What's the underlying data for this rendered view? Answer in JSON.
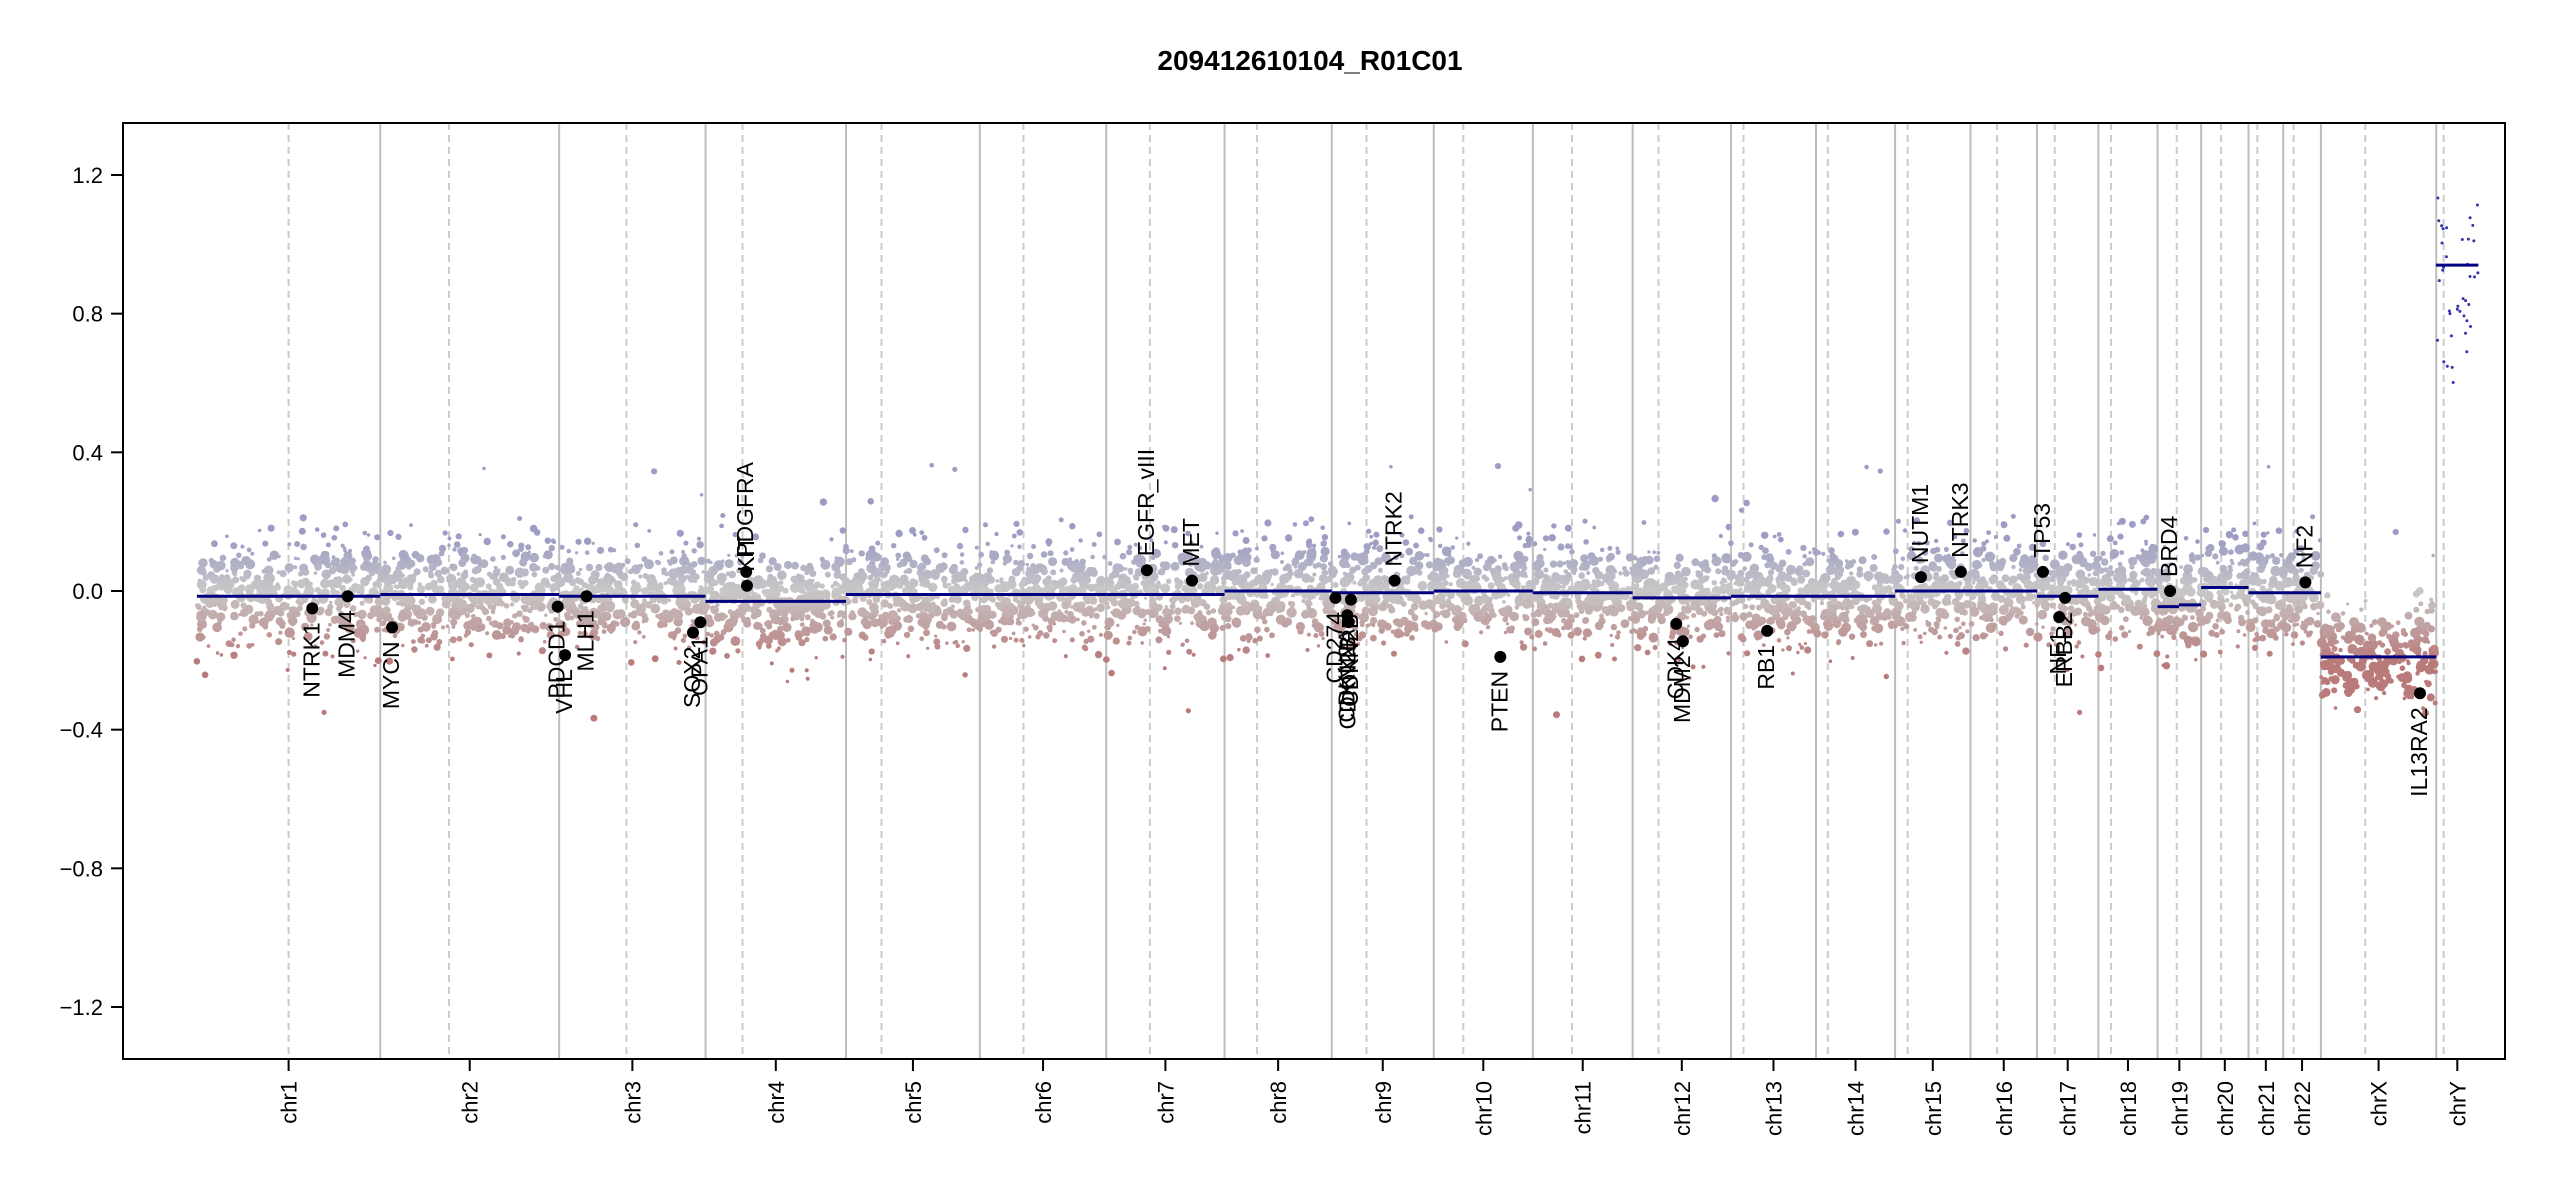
{
  "chart_data": {
    "type": "scatter",
    "title": "209412610104_R01C01",
    "xlabel": "",
    "ylabel": "",
    "ylim": [
      -1.35,
      1.35
    ],
    "yticks": [
      1.2,
      0.8,
      0.4,
      0.0,
      -0.4,
      -0.8,
      -1.2
    ],
    "ytick_labels": [
      "1.2",
      "0.8",
      "0.4",
      "0.0",
      "−0.4",
      "−0.8",
      "−1.2"
    ],
    "grid": false,
    "colors": {
      "gain": "#9c9cc4",
      "neutral": "#c8c8c8",
      "loss": "#b97a7a",
      "segment": "#000080",
      "separator_solid": "#bdbdbd",
      "separator_dashed": "#cccccc",
      "gene_point": "#000000"
    },
    "chromosomes": [
      {
        "name": "chr1",
        "start": 0,
        "end": 248,
        "centromere": 124,
        "segments": [
          [
            0,
            248,
            -0.015
          ]
        ]
      },
      {
        "name": "chr2",
        "start": 248,
        "end": 490,
        "centromere": 341,
        "segments": [
          [
            248,
            490,
            -0.01
          ]
        ]
      },
      {
        "name": "chr3",
        "start": 490,
        "end": 688,
        "centromere": 581,
        "segments": [
          [
            490,
            688,
            -0.015
          ]
        ]
      },
      {
        "name": "chr4",
        "start": 688,
        "end": 878,
        "centromere": 738,
        "segments": [
          [
            688,
            878,
            -0.03
          ]
        ]
      },
      {
        "name": "chr5",
        "start": 878,
        "end": 1059,
        "centromere": 926,
        "segments": [
          [
            878,
            1059,
            -0.01
          ]
        ]
      },
      {
        "name": "chr6",
        "start": 1059,
        "end": 1230,
        "centromere": 1118,
        "segments": [
          [
            1059,
            1230,
            -0.01
          ]
        ]
      },
      {
        "name": "chr7",
        "start": 1230,
        "end": 1390,
        "centromere": 1289,
        "segments": [
          [
            1230,
            1390,
            -0.01
          ]
        ]
      },
      {
        "name": "chr8",
        "start": 1390,
        "end": 1535,
        "centromere": 1434,
        "segments": [
          [
            1390,
            1535,
            0.0
          ]
        ]
      },
      {
        "name": "chr9",
        "start": 1535,
        "end": 1673,
        "centromere": 1582,
        "segments": [
          [
            1535,
            1673,
            -0.005
          ]
        ]
      },
      {
        "name": "chr10",
        "start": 1673,
        "end": 1807,
        "centromere": 1713,
        "segments": [
          [
            1673,
            1807,
            0.0
          ]
        ]
      },
      {
        "name": "chr11",
        "start": 1807,
        "end": 1942,
        "centromere": 1860,
        "segments": [
          [
            1807,
            1942,
            -0.005
          ]
        ]
      },
      {
        "name": "chr12",
        "start": 1942,
        "end": 2075,
        "centromere": 1977,
        "segments": [
          [
            1942,
            2075,
            -0.02
          ]
        ]
      },
      {
        "name": "chr13",
        "start": 2075,
        "end": 2190,
        "centromere": 2092,
        "segments": [
          [
            2075,
            2190,
            -0.015
          ]
        ]
      },
      {
        "name": "chr14",
        "start": 2190,
        "end": 2297,
        "centromere": 2206,
        "segments": [
          [
            2190,
            2297,
            -0.015
          ]
        ]
      },
      {
        "name": "chr15",
        "start": 2297,
        "end": 2399,
        "centromere": 2314,
        "segments": [
          [
            2297,
            2399,
            0.0
          ]
        ]
      },
      {
        "name": "chr16",
        "start": 2399,
        "end": 2489,
        "centromere": 2435,
        "segments": [
          [
            2399,
            2489,
            0.0
          ]
        ]
      },
      {
        "name": "chr17",
        "start": 2489,
        "end": 2572,
        "centromere": 2513,
        "segments": [
          [
            2489,
            2572,
            -0.015
          ]
        ]
      },
      {
        "name": "chr18",
        "start": 2572,
        "end": 2652,
        "centromere": 2589,
        "segments": [
          [
            2572,
            2652,
            0.005
          ]
        ]
      },
      {
        "name": "chr19",
        "start": 2652,
        "end": 2711,
        "centromere": 2678,
        "segments": [
          [
            2652,
            2681,
            -0.045
          ],
          [
            2681,
            2711,
            -0.04
          ]
        ]
      },
      {
        "name": "chr20",
        "start": 2711,
        "end": 2775,
        "centromere": 2738,
        "segments": [
          [
            2711,
            2775,
            0.01
          ]
        ]
      },
      {
        "name": "chr21",
        "start": 2775,
        "end": 2822,
        "centromere": 2787,
        "segments": [
          [
            2775,
            2822,
            -0.005
          ]
        ]
      },
      {
        "name": "chr22",
        "start": 2822,
        "end": 2873,
        "centromere": 2836,
        "segments": [
          [
            2822,
            2873,
            -0.005
          ]
        ]
      },
      {
        "name": "chrX",
        "start": 2873,
        "end": 3029,
        "centromere": 2933,
        "segments": [
          [
            2873,
            3029,
            -0.19
          ]
        ]
      },
      {
        "name": "chrY",
        "start": 3029,
        "end": 3086,
        "centromere": 3039,
        "segments": [
          [
            3029,
            3086,
            0.94
          ]
        ]
      }
    ],
    "genes": [
      {
        "name": "NTRK1",
        "x": 156,
        "y": -0.05,
        "label_side": "below"
      },
      {
        "name": "MDM4",
        "x": 204,
        "y": -0.015,
        "label_side": "below"
      },
      {
        "name": "MYCN",
        "x": 264,
        "y": -0.105,
        "label_side": "below"
      },
      {
        "name": "PDCD1",
        "x": 488,
        "y": -0.045,
        "label_side": "below"
      },
      {
        "name": "VHL",
        "x": 498,
        "y": -0.185,
        "label_side": "below"
      },
      {
        "name": "MLH1",
        "x": 527,
        "y": -0.015,
        "label_side": "below"
      },
      {
        "name": "SOX2",
        "x": 671,
        "y": -0.12,
        "label_side": "below"
      },
      {
        "name": "OPA1",
        "x": 681,
        "y": -0.09,
        "label_side": "below"
      },
      {
        "name": "PDGFRA",
        "x": 743,
        "y": 0.055,
        "label_side": "above"
      },
      {
        "name": "KIT",
        "x": 744,
        "y": 0.015,
        "label_side": "above"
      },
      {
        "name": "EGFR_vIII",
        "x": 1285,
        "y": 0.06,
        "label_side": "above"
      },
      {
        "name": "MET",
        "x": 1346,
        "y": 0.03,
        "label_side": "above"
      },
      {
        "name": "CD274",
        "x": 1540,
        "y": -0.02,
        "label_side": "below"
      },
      {
        "name": "CDKN2A",
        "x": 1556,
        "y": -0.07,
        "label_side": "below"
      },
      {
        "name": "CDKN2B",
        "x": 1558,
        "y": -0.09,
        "label_side": "below"
      },
      {
        "name": "CDKN2B",
        "x": 1561,
        "y": -0.025,
        "label_side": "below"
      },
      {
        "name": "NTRK2",
        "x": 1620,
        "y": 0.03,
        "label_side": "above"
      },
      {
        "name": "PTEN",
        "x": 1763,
        "y": -0.19,
        "label_side": "below"
      },
      {
        "name": "CDK4",
        "x": 2001,
        "y": -0.095,
        "label_side": "below"
      },
      {
        "name": "MDM2",
        "x": 2010,
        "y": -0.145,
        "label_side": "below"
      },
      {
        "name": "RB1",
        "x": 2124,
        "y": -0.115,
        "label_side": "below"
      },
      {
        "name": "NUTM1",
        "x": 2332,
        "y": 0.04,
        "label_side": "above"
      },
      {
        "name": "NTRK3",
        "x": 2386,
        "y": 0.055,
        "label_side": "above"
      },
      {
        "name": "TP53",
        "x": 2497,
        "y": 0.055,
        "label_side": "above"
      },
      {
        "name": "NF1",
        "x": 2519,
        "y": -0.075,
        "label_side": "below"
      },
      {
        "name": "ERBB2",
        "x": 2527,
        "y": -0.02,
        "label_side": "below"
      },
      {
        "name": "BRD4",
        "x": 2669,
        "y": 0.0,
        "label_side": "above"
      },
      {
        "name": "NF2",
        "x": 2852,
        "y": 0.025,
        "label_side": "above"
      },
      {
        "name": "IL13RA2",
        "x": 3007,
        "y": -0.295,
        "label_side": "below"
      }
    ]
  }
}
